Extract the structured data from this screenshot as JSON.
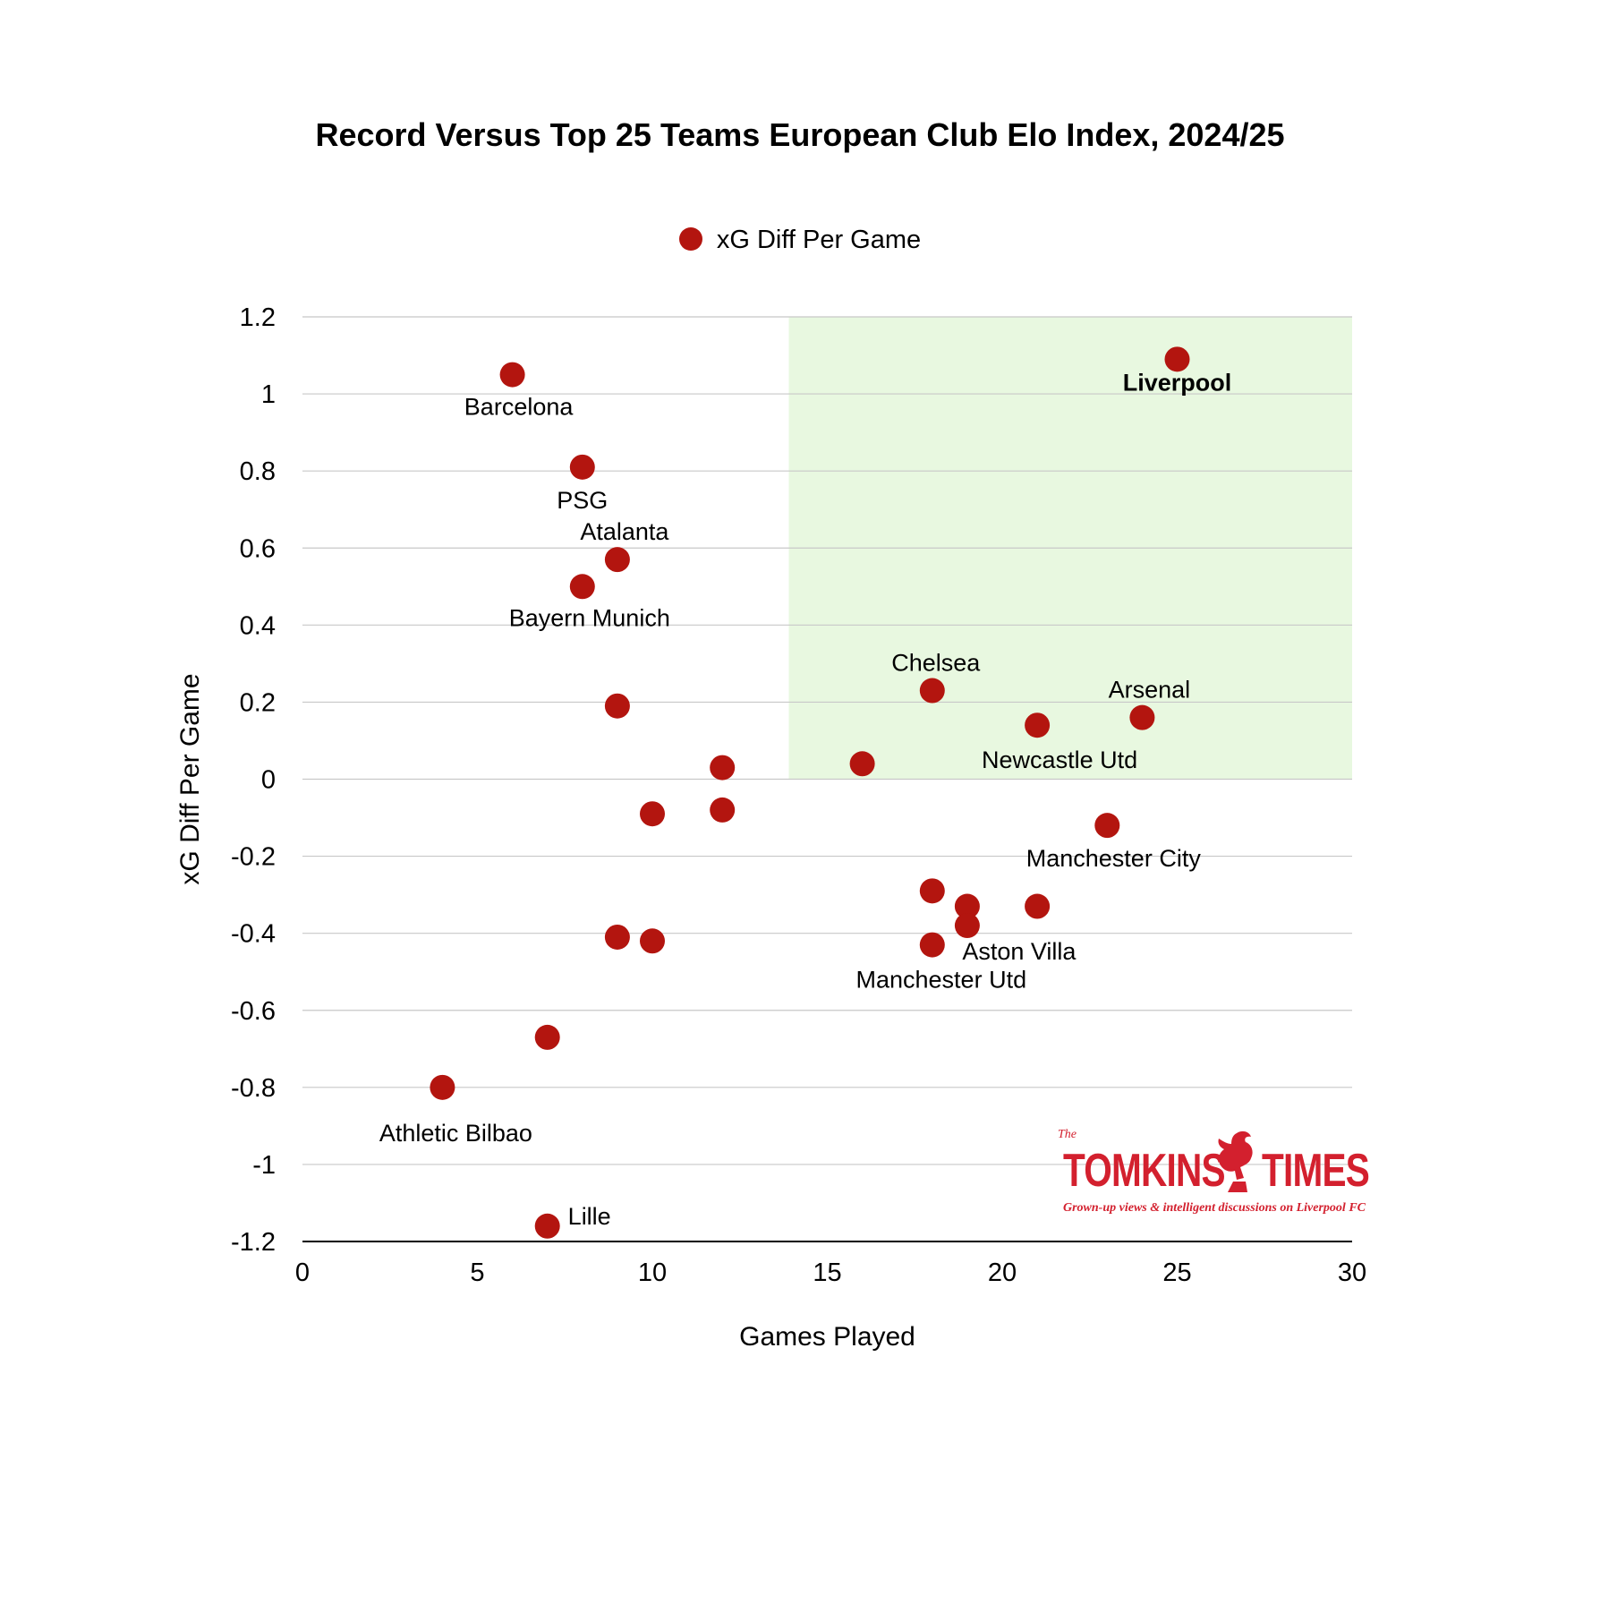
{
  "colors": {
    "point": "#b3150f",
    "highlight": "#e8f8e0",
    "grid": "#c8c8c8",
    "axis": "#000000",
    "logo": "#d3202e"
  },
  "logo": {
    "the": "The",
    "word_left": "TOMKINS",
    "word_right": "TIMES",
    "tagline": "Grown-up views & intelligent discussions on Liverpool FC"
  },
  "chart_data": {
    "type": "scatter",
    "title": "Record Versus Top 25 Teams European Club Elo Index, 2024/25",
    "xlabel": "Games Played",
    "ylabel": "xG Diff Per Game",
    "xlim": [
      0,
      30
    ],
    "ylim": [
      -1.2,
      1.2
    ],
    "xticks": [
      "0",
      "5",
      "10",
      "15",
      "20",
      "25",
      "30"
    ],
    "yticks": [
      "1.2",
      "1",
      "0.8",
      "0.6",
      "0.4",
      "0.2",
      "0",
      "-0.2",
      "-0.4",
      "-0.6",
      "-0.8",
      "-1",
      "-1.2"
    ],
    "grid": true,
    "legend_position": "top-center",
    "highlight_region": {
      "x": [
        13.9,
        30
      ],
      "y": [
        0,
        1.2
      ]
    },
    "series": [
      {
        "name": "xG Diff Per Game",
        "points": [
          {
            "x": 6,
            "y": 1.05,
            "label": "Barcelona"
          },
          {
            "x": 8,
            "y": 0.81,
            "label": "PSG"
          },
          {
            "x": 9,
            "y": 0.57,
            "label": "Atalanta"
          },
          {
            "x": 8,
            "y": 0.5,
            "label": "Bayern Munich"
          },
          {
            "x": 9,
            "y": 0.19,
            "label": ""
          },
          {
            "x": 12,
            "y": 0.03,
            "label": ""
          },
          {
            "x": 10,
            "y": -0.09,
            "label": ""
          },
          {
            "x": 12,
            "y": -0.08,
            "label": ""
          },
          {
            "x": 9,
            "y": -0.41,
            "label": ""
          },
          {
            "x": 10,
            "y": -0.42,
            "label": ""
          },
          {
            "x": 7,
            "y": -0.67,
            "label": ""
          },
          {
            "x": 4,
            "y": -0.8,
            "label": "Athletic Bilbao"
          },
          {
            "x": 7,
            "y": -1.16,
            "label": "Lille"
          },
          {
            "x": 16,
            "y": 0.04,
            "label": ""
          },
          {
            "x": 18,
            "y": 0.23,
            "label": "Chelsea"
          },
          {
            "x": 21,
            "y": 0.14,
            "label": "Newcastle Utd"
          },
          {
            "x": 24,
            "y": 0.16,
            "label": "Arsenal"
          },
          {
            "x": 25,
            "y": 1.09,
            "label": "Liverpool",
            "bold": true
          },
          {
            "x": 23,
            "y": -0.12,
            "label": "Manchester City"
          },
          {
            "x": 18,
            "y": -0.29,
            "label": ""
          },
          {
            "x": 19,
            "y": -0.33,
            "label": ""
          },
          {
            "x": 21,
            "y": -0.33,
            "label": ""
          },
          {
            "x": 19,
            "y": -0.38,
            "label": "Aston Villa"
          },
          {
            "x": 18,
            "y": -0.43,
            "label": "Manchester Utd"
          }
        ]
      }
    ]
  }
}
